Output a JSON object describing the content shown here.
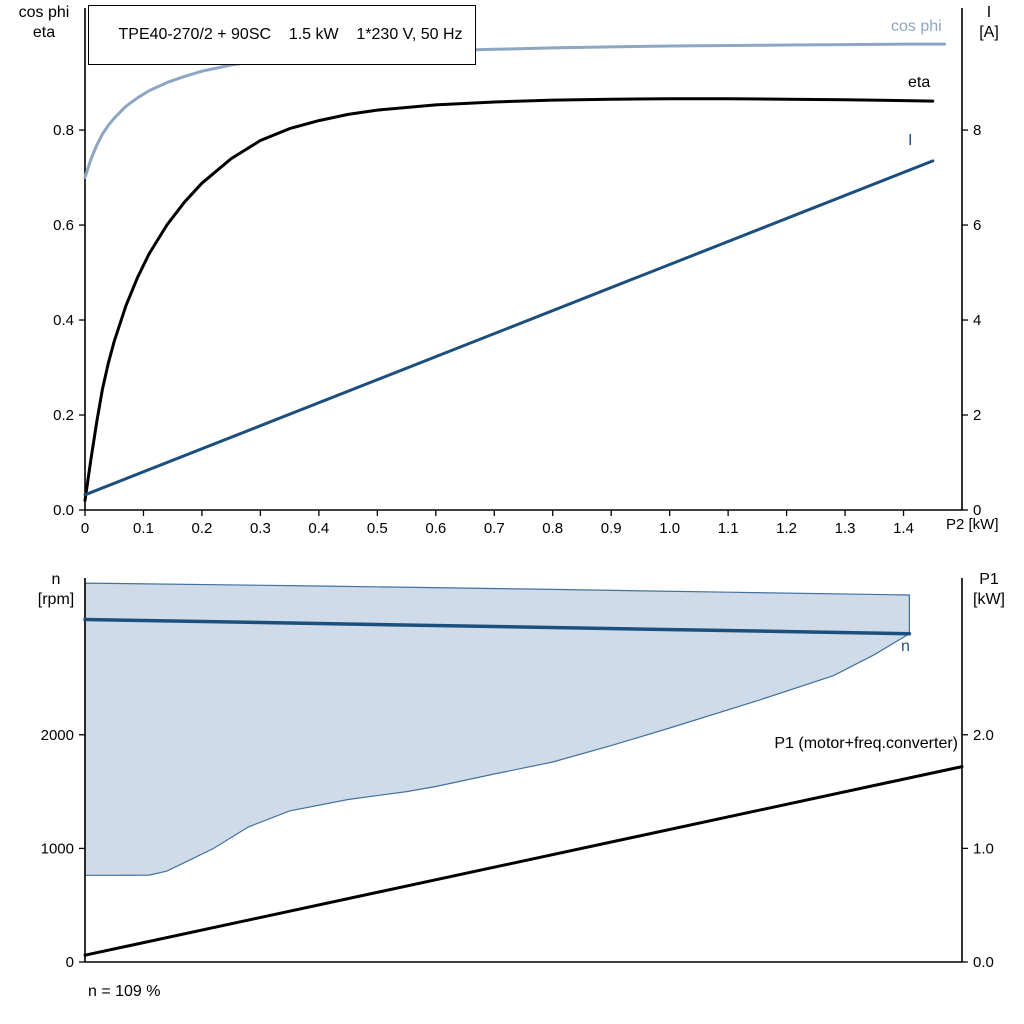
{
  "colors": {
    "light_blue": "#8da6c4",
    "dark_blue": "#1c4f7c",
    "black": "#000000",
    "area_fill": "#cfdbe9",
    "area_edge": "#43719e"
  },
  "chart_data": [
    {
      "name": "motor-curves-panel",
      "type": "line",
      "title": "TPE40-270/2 + 90SC    1.5 kW    1*230 V, 50 Hz",
      "x_axis": {
        "label": "P2 [kW]",
        "min": 0,
        "max": 1.5,
        "ticks": [
          {
            "v": 0,
            "label": "0"
          },
          {
            "v": 0.1,
            "label": "0.1"
          },
          {
            "v": 0.2,
            "label": "0.2"
          },
          {
            "v": 0.3,
            "label": "0.3"
          },
          {
            "v": 0.4,
            "label": "0.4"
          },
          {
            "v": 0.5,
            "label": "0.5"
          },
          {
            "v": 0.6,
            "label": "0.6"
          },
          {
            "v": 0.7,
            "label": "0.7"
          },
          {
            "v": 0.8,
            "label": "0.8"
          },
          {
            "v": 0.9,
            "label": "0.9"
          },
          {
            "v": 1.0,
            "label": "1.0"
          },
          {
            "v": 1.1,
            "label": "1.1"
          },
          {
            "v": 1.2,
            "label": "1.2"
          },
          {
            "v": 1.3,
            "label": "1.3"
          },
          {
            "v": 1.4,
            "label": "1.4"
          }
        ]
      },
      "left_axis": {
        "line1": "cos phi",
        "line2": "eta",
        "min": 0,
        "max": 1.057,
        "ticks": [
          {
            "v": 0,
            "label": "0.0"
          },
          {
            "v": 0.2,
            "label": "0.2"
          },
          {
            "v": 0.4,
            "label": "0.4"
          },
          {
            "v": 0.6,
            "label": "0.6"
          },
          {
            "v": 0.8,
            "label": "0.8"
          }
        ]
      },
      "right_axis": {
        "line1": "I",
        "line2": "[A]",
        "min": 0,
        "max": 10.57,
        "ticks": [
          {
            "v": 0,
            "label": "0"
          },
          {
            "v": 2,
            "label": "2"
          },
          {
            "v": 4,
            "label": "4"
          },
          {
            "v": 6,
            "label": "6"
          },
          {
            "v": 8,
            "label": "8"
          }
        ]
      },
      "series": [
        {
          "id": "cos-phi",
          "name": "cos phi",
          "axis": "left",
          "color": "#8da6c4",
          "width": 3,
          "points": [
            [
              0,
              0.7
            ],
            [
              0.01,
              0.738
            ],
            [
              0.02,
              0.768
            ],
            [
              0.03,
              0.792
            ],
            [
              0.04,
              0.81
            ],
            [
              0.05,
              0.825
            ],
            [
              0.07,
              0.85
            ],
            [
              0.09,
              0.868
            ],
            [
              0.11,
              0.883
            ],
            [
              0.14,
              0.9
            ],
            [
              0.17,
              0.913
            ],
            [
              0.2,
              0.924
            ],
            [
              0.25,
              0.937
            ],
            [
              0.3,
              0.946
            ],
            [
              0.35,
              0.952
            ],
            [
              0.4,
              0.957
            ],
            [
              0.5,
              0.963
            ],
            [
              0.6,
              0.967
            ],
            [
              0.7,
              0.97
            ],
            [
              0.8,
              0.973
            ],
            [
              0.9,
              0.975
            ],
            [
              1.0,
              0.977
            ],
            [
              1.1,
              0.978
            ],
            [
              1.2,
              0.979
            ],
            [
              1.3,
              0.98
            ],
            [
              1.4,
              0.981
            ],
            [
              1.47,
              0.981
            ]
          ]
        },
        {
          "id": "eta",
          "name": "eta",
          "axis": "left",
          "color": "#000000",
          "width": 3,
          "points": [
            [
              0,
              0.02
            ],
            [
              0.01,
              0.105
            ],
            [
              0.02,
              0.185
            ],
            [
              0.03,
              0.255
            ],
            [
              0.04,
              0.31
            ],
            [
              0.05,
              0.355
            ],
            [
              0.07,
              0.43
            ],
            [
              0.09,
              0.49
            ],
            [
              0.11,
              0.54
            ],
            [
              0.14,
              0.6
            ],
            [
              0.17,
              0.648
            ],
            [
              0.2,
              0.688
            ],
            [
              0.25,
              0.74
            ],
            [
              0.3,
              0.778
            ],
            [
              0.35,
              0.803
            ],
            [
              0.4,
              0.82
            ],
            [
              0.45,
              0.833
            ],
            [
              0.5,
              0.842
            ],
            [
              0.6,
              0.853
            ],
            [
              0.7,
              0.859
            ],
            [
              0.8,
              0.863
            ],
            [
              0.9,
              0.865
            ],
            [
              1.0,
              0.866
            ],
            [
              1.1,
              0.866
            ],
            [
              1.2,
              0.865
            ],
            [
              1.3,
              0.864
            ],
            [
              1.4,
              0.862
            ],
            [
              1.45,
              0.861
            ]
          ]
        },
        {
          "id": "current",
          "name": "I",
          "axis": "right",
          "color": "#1c4f7c",
          "width": 3,
          "points": [
            [
              0,
              0.32
            ],
            [
              1.45,
              7.35
            ]
          ]
        }
      ]
    },
    {
      "name": "speed-power-panel",
      "type": "line",
      "annotation": "n = 109 %",
      "x_axis": {
        "label": "",
        "min": 0,
        "max": 1.5,
        "ticks": []
      },
      "left_axis": {
        "line1": "n",
        "line2": "[rpm]",
        "min": 0,
        "max": 3380,
        "ticks": [
          {
            "v": 0,
            "label": "0"
          },
          {
            "v": 1000,
            "label": "1000"
          },
          {
            "v": 2000,
            "label": "2000"
          }
        ]
      },
      "right_axis": {
        "line1": "P1",
        "line2": "[kW]",
        "min": 0,
        "max": 3.38,
        "ticks": [
          {
            "v": 0,
            "label": "0.0"
          },
          {
            "v": 1.0,
            "label": "1.0"
          },
          {
            "v": 2.0,
            "label": "2.0"
          }
        ]
      },
      "area": {
        "name": "speed-control-range-area",
        "fill": "#cfdbe9",
        "edge": "#43719e",
        "points": [
          [
            0,
            3335
          ],
          [
            0.4,
            3310
          ],
          [
            0.8,
            3280
          ],
          [
            1.1,
            3255
          ],
          [
            1.41,
            3230
          ],
          [
            1.41,
            2890
          ],
          [
            1.35,
            2705
          ],
          [
            1.28,
            2520
          ],
          [
            1.15,
            2300
          ],
          [
            1.0,
            2060
          ],
          [
            0.9,
            1905
          ],
          [
            0.8,
            1760
          ],
          [
            0.7,
            1655
          ],
          [
            0.6,
            1545
          ],
          [
            0.55,
            1500
          ],
          [
            0.45,
            1430
          ],
          [
            0.35,
            1330
          ],
          [
            0.28,
            1190
          ],
          [
            0.22,
            1000
          ],
          [
            0.18,
            900
          ],
          [
            0.14,
            800
          ],
          [
            0.11,
            765
          ],
          [
            0.05,
            763
          ],
          [
            0,
            763
          ]
        ]
      },
      "series": [
        {
          "id": "speed",
          "name": "n",
          "axis": "left",
          "color": "#1c4f7c",
          "width": 3.5,
          "points": [
            [
              0,
              3015
            ],
            [
              1.41,
              2890
            ]
          ]
        },
        {
          "id": "p1",
          "name": "P1 (motor+freq.converter)",
          "axis": "right",
          "color": "#000000",
          "width": 3,
          "points": [
            [
              0,
              0.06
            ],
            [
              1.5,
              1.72
            ]
          ]
        }
      ]
    }
  ]
}
